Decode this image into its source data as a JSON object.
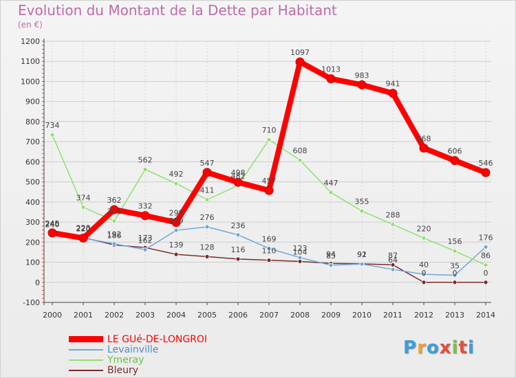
{
  "title": "Evolution du Montant de la Dette par Habitant",
  "subtitle": "(en €)",
  "logo": {
    "text": "Proxiti",
    "colors": [
      "#3b9de0",
      "#f0a030",
      "#3b9de0",
      "#e0503c",
      "#7cc242",
      "#e0503c",
      "#3b9de0"
    ]
  },
  "chart_data": {
    "type": "line",
    "title": "Evolution du Montant de la Dette par Habitant",
    "subtitle": "(en €)",
    "x": [
      "2000",
      "2001",
      "2002",
      "2003",
      "2004",
      "2005",
      "2006",
      "2007",
      "2008",
      "2009",
      "2010",
      "2011",
      "2012",
      "2013",
      "2014"
    ],
    "ylim": [
      -100,
      1200
    ],
    "yticks": [
      "-100",
      "0",
      "100",
      "200",
      "300",
      "400",
      "500",
      "600",
      "700",
      "800",
      "900",
      "1000",
      "1100",
      "1200"
    ],
    "grid": true,
    "legend_position": "bottom-left",
    "series": [
      {
        "name": "LE GUé-DE-LONGROI",
        "color": "#ff0000",
        "values": [
          246,
          220,
          362,
          332,
          298,
          547,
          498,
          457,
          1097,
          1013,
          983,
          941,
          668,
          606,
          546
        ]
      },
      {
        "name": "Levainville",
        "color": "#6fa8d6",
        "values": [
          240,
          220,
          192,
          162,
          259,
          276,
          236,
          169,
          123,
          85,
          91,
          64,
          40,
          35,
          176
        ]
      },
      {
        "name": "Ymeray",
        "color": "#90e070",
        "values": [
          734,
          374,
          305,
          562,
          492,
          411,
          482,
          710,
          608,
          447,
          355,
          288,
          220,
          156,
          86
        ]
      },
      {
        "name": "Bleury",
        "color": "#7a2a2a",
        "values": [
          245,
          223,
          186,
          173,
          139,
          128,
          116,
          110,
          104,
          94,
          92,
          87,
          0,
          0,
          0
        ]
      }
    ]
  }
}
